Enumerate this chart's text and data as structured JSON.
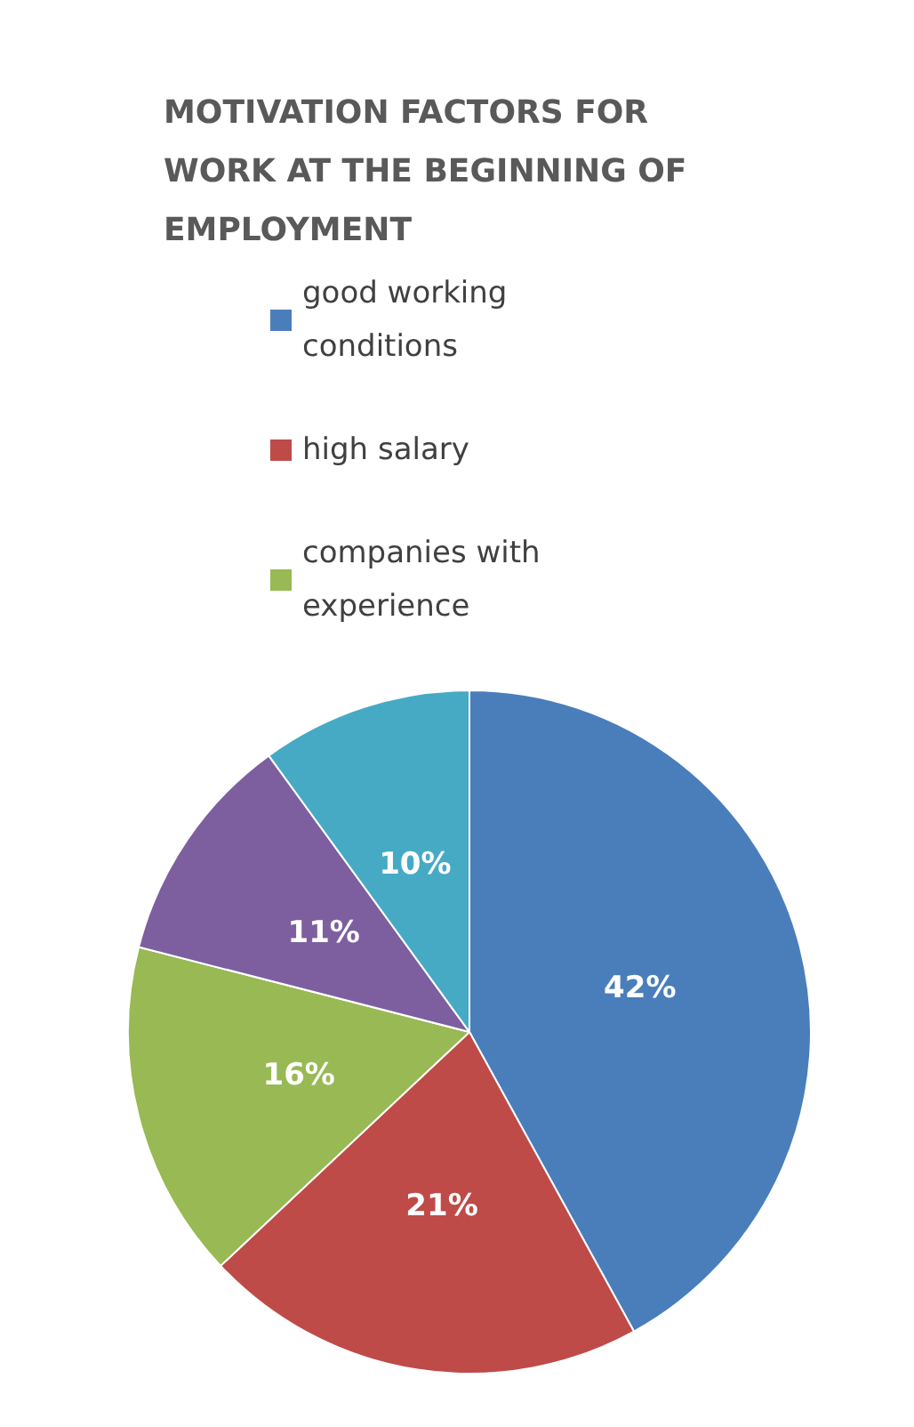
{
  "chart_data": {
    "type": "pie",
    "title": "MOTIVATION FACTORS FOR WORK AT THE BEGINNING OF EMPLOYMENT",
    "categories": [
      "good working conditions",
      "high salary",
      "companies with experience",
      null,
      null
    ],
    "values": [
      42,
      21,
      16,
      11,
      10
    ],
    "colors": [
      "#4a7ebb",
      "#be4b48",
      "#98b954",
      "#7d5fa0",
      "#46aac5"
    ],
    "value_labels": [
      "42%",
      "21%",
      "16%",
      "11%",
      "10%"
    ],
    "legend": "top"
  }
}
